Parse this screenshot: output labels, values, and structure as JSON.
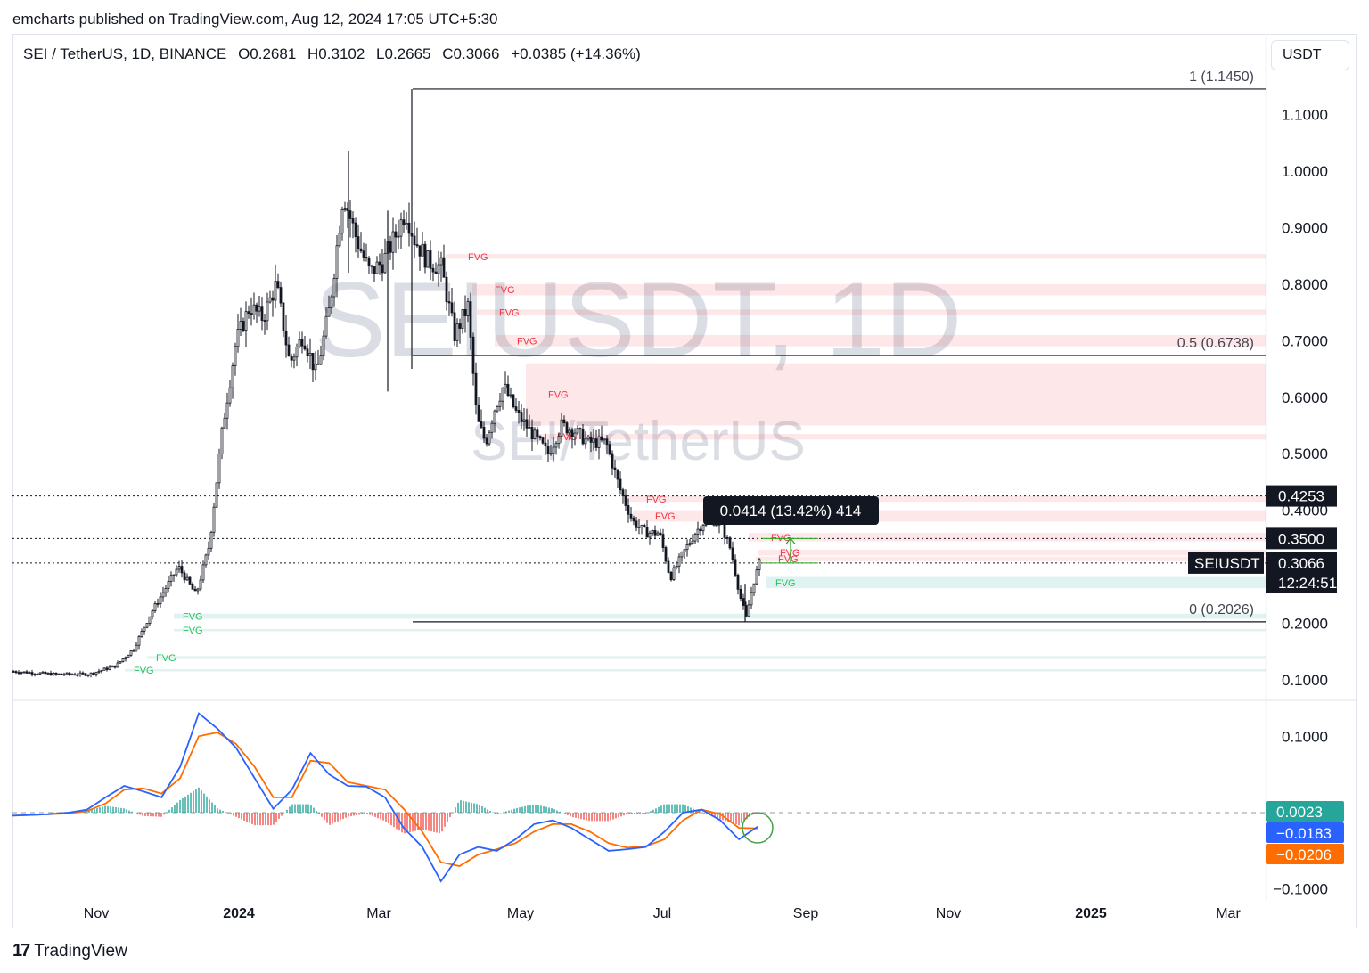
{
  "caption": "emcharts published on TradingView.com, Aug 12, 2024 17:05 UTC+5:30",
  "symbol_line": {
    "pair": "SEI / TetherUS, 1D, BINANCE",
    "open": "O0.2681",
    "high": "H0.3102",
    "low": "L0.2665",
    "close": "C0.3066",
    "change": "+0.0385 (+14.36%)"
  },
  "currency_button": "USDT",
  "watermark": {
    "main": "SEIUSDT, 1D",
    "sub": "SEI/TetherUS"
  },
  "footer": {
    "logo_mark": "17",
    "brand": "TradingView"
  },
  "colors": {
    "candle": "#131722",
    "bear_fvg": "#f23645",
    "bull_fvg": "#089981",
    "macd_line": "#2962ff",
    "signal_line": "#ff6d00",
    "hist_pos": "#26a69a",
    "hist_neg": "#ef5350"
  },
  "chart_data": {
    "type": "candlestick",
    "price_axis": {
      "ticks": [
        "1.1000",
        "1.0000",
        "0.9000",
        "0.8000",
        "0.7000",
        "0.6000",
        "0.5000",
        "0.4000",
        "0.2000",
        "0.1000"
      ],
      "range": [
        0.08,
        1.2
      ]
    },
    "time_axis": {
      "labels": [
        "Nov",
        "2024",
        "Mar",
        "May",
        "Jul",
        "Sep",
        "Nov",
        "2025",
        "Mar"
      ],
      "bold": [
        false,
        true,
        false,
        false,
        false,
        false,
        false,
        true,
        false
      ]
    },
    "price_tags": [
      {
        "label": "",
        "value": "0.4253",
        "style": "dark"
      },
      {
        "label": "",
        "value": "0.3500",
        "style": "dark"
      },
      {
        "label": "SEIUSDT",
        "value": "0.3066",
        "extra": "12:24:51",
        "style": "dark"
      }
    ],
    "horizontal_levels": [
      0.4253,
      0.35,
      0.3066
    ],
    "fibonacci": [
      {
        "label": "1 (1.1450)",
        "value": 1.145
      },
      {
        "label": "0.5 (0.6738)",
        "value": 0.6738
      },
      {
        "label": "0 (0.2026)",
        "value": 0.2026
      }
    ],
    "measure_tooltip": "0.0414 (13.42%) 414",
    "fvg_label": "FVG",
    "fvg_bear_zones": [
      [
        0.845,
        0.853
      ],
      [
        0.78,
        0.8
      ],
      [
        0.745,
        0.755
      ],
      [
        0.69,
        0.71
      ],
      [
        0.55,
        0.66
      ],
      [
        0.525,
        0.535
      ],
      [
        0.415,
        0.425
      ],
      [
        0.38,
        0.4
      ],
      [
        0.345,
        0.36
      ],
      [
        0.32,
        0.33
      ],
      [
        0.31,
        0.318
      ]
    ],
    "fvg_bull_zones": [
      [
        0.262,
        0.282
      ],
      [
        0.208,
        0.217
      ],
      [
        0.186,
        0.19
      ],
      [
        0.137,
        0.142
      ],
      [
        0.115,
        0.119
      ]
    ],
    "macd_axis": {
      "ticks": [
        "0.1000",
        "−0.1000"
      ],
      "range": [
        -0.12,
        0.14
      ]
    },
    "macd_tags": [
      {
        "value": "0.0023",
        "color": "#26a69a"
      },
      {
        "value": "−0.0183",
        "color": "#2962ff"
      },
      {
        "value": "−0.0206",
        "color": "#ff6d00"
      }
    ],
    "macd_series": [
      {
        "name": "",
        "values": [
          -0.004,
          -0.003,
          -0.002,
          0.0,
          0.004,
          0.02,
          0.035,
          0.028,
          0.02,
          0.06,
          0.13,
          0.11,
          0.085,
          0.045,
          0.005,
          0.03,
          0.078,
          0.05,
          0.035,
          0.034,
          0.02,
          -0.02,
          -0.045,
          -0.09,
          -0.055,
          -0.045,
          -0.05,
          -0.035,
          -0.015,
          -0.01,
          -0.02,
          -0.035,
          -0.05,
          -0.048,
          -0.045,
          -0.025,
          0.0,
          0.004,
          -0.01,
          -0.035,
          -0.0183
        ]
      },
      {
        "name": "",
        "values": [
          -0.004,
          -0.003,
          -0.002,
          -0.001,
          0.002,
          0.012,
          0.03,
          0.032,
          0.025,
          0.045,
          0.1,
          0.105,
          0.09,
          0.06,
          0.02,
          0.02,
          0.068,
          0.065,
          0.04,
          0.035,
          0.03,
          0.005,
          -0.025,
          -0.065,
          -0.07,
          -0.055,
          -0.048,
          -0.04,
          -0.025,
          -0.015,
          -0.015,
          -0.025,
          -0.04,
          -0.046,
          -0.044,
          -0.035,
          -0.01,
          0.004,
          -0.002,
          -0.02,
          -0.0206
        ]
      }
    ]
  }
}
